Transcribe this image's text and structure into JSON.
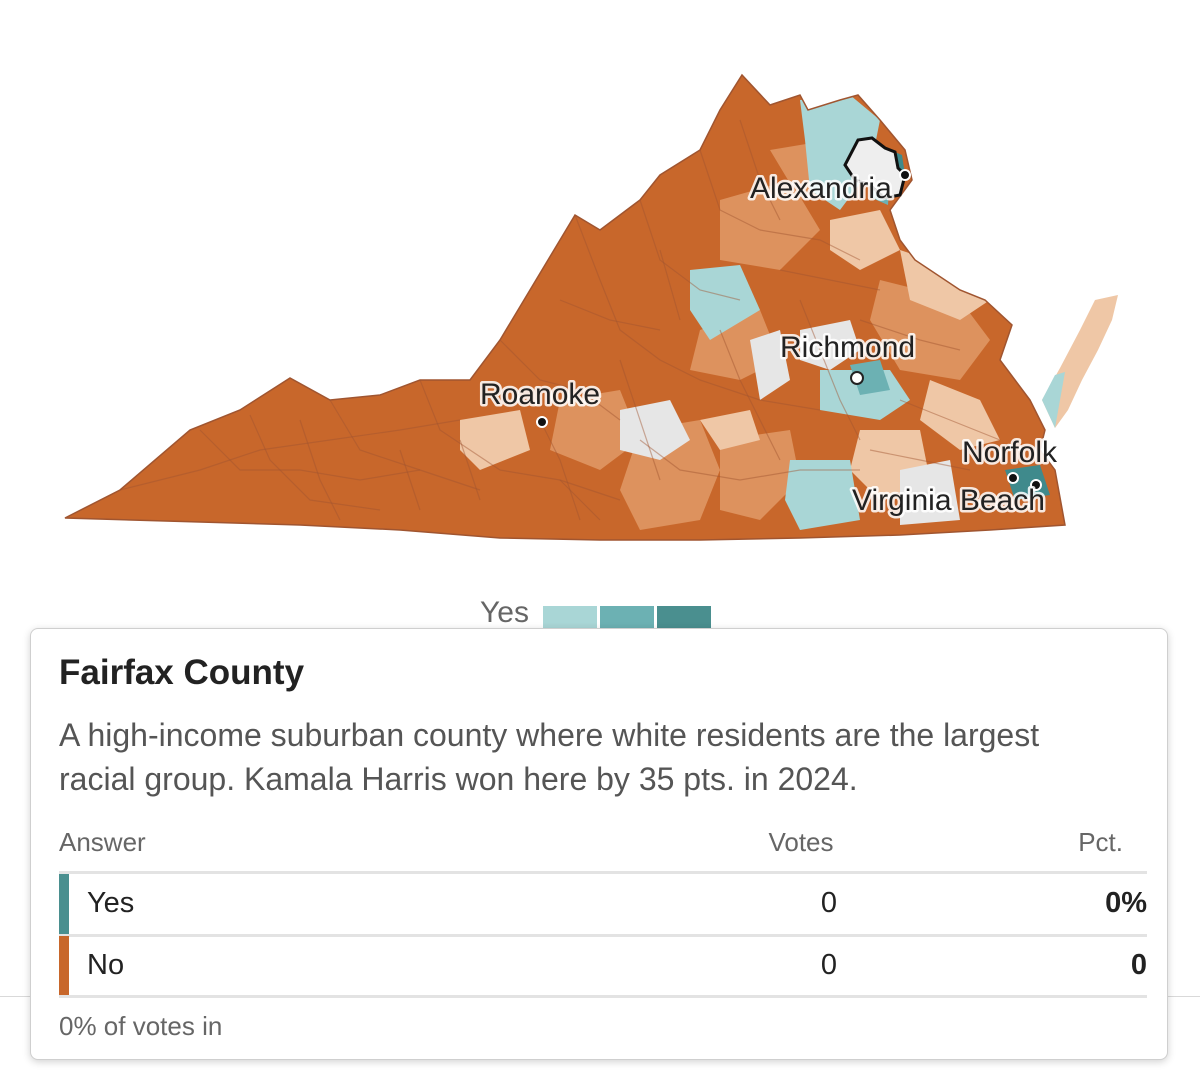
{
  "map": {
    "cities": [
      {
        "name": "Alexandria",
        "marker": "filled"
      },
      {
        "name": "Richmond",
        "marker": "hollow"
      },
      {
        "name": "Roanoke",
        "marker": "filled"
      },
      {
        "name": "Norfolk",
        "marker": "filled"
      },
      {
        "name": "Virginia Beach",
        "marker": "filled"
      }
    ],
    "colors": {
      "no_strong": "#c8672b",
      "no_medium": "#dd925e",
      "no_light": "#efc7a6",
      "neutral": "#e6e6e6",
      "yes_light": "#a9d6d6",
      "yes_medium": "#6cb1b3",
      "yes_strong": "#3f8a8c",
      "border": "#a05530"
    },
    "highlighted_county": "Fairfax County"
  },
  "legend": {
    "yes_label": "Yes",
    "yes_colors": [
      "#a9d6d6",
      "#6cb1b3",
      "#4a8f8f"
    ]
  },
  "tooltip": {
    "title": "Fairfax County",
    "description": "A high-income suburban county where white residents are the largest racial group. Kamala Harris won here by 35 pts. in 2024.",
    "columns": {
      "answer": "Answer",
      "votes": "Votes",
      "pct": "Pct."
    },
    "rows": [
      {
        "answer": "Yes",
        "votes": "0",
        "pct": "0%",
        "color": "#4a8f8f"
      },
      {
        "answer": "No",
        "votes": "0",
        "pct": "0",
        "color": "#c8672b"
      }
    ],
    "footer": "0% of votes in"
  }
}
